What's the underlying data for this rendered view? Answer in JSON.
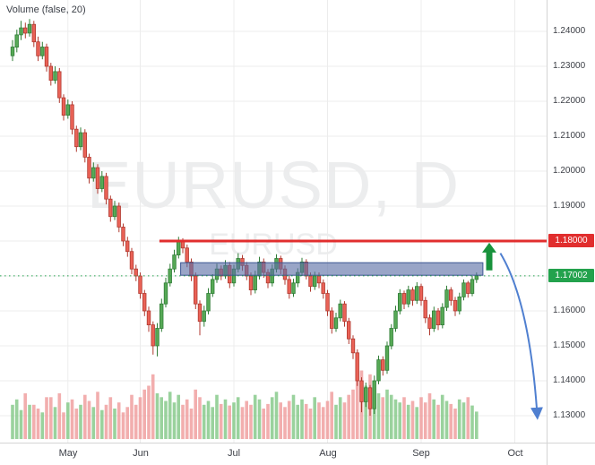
{
  "legend": {
    "volume_label": "Volume (false, 20)"
  },
  "watermark": {
    "line1": "EURUSD, D",
    "line2": "EURUSD"
  },
  "annotations": {
    "resistance": {
      "price": 1.18,
      "label": "1.18000",
      "color": "#e12e2e",
      "from_index": 34.5
    },
    "last_price": {
      "price": 1.17002,
      "label": "1.17002",
      "color": "#23a24d"
    },
    "range_box": {
      "from_index": 39.5,
      "to_index": 110.5,
      "top_price": 1.1738,
      "bottom_price": 1.1702,
      "fill": "rgba(90,110,165,0.62)",
      "border": "#3c5693"
    },
    "up_arrow": {
      "index": 112,
      "tip_price": 1.1795,
      "base_price": 1.1716,
      "color": "#18923c"
    },
    "down_arrow": {
      "from_index": 114.6,
      "from_price": 1.1765,
      "to_index": 123.3,
      "to_price": 1.1295,
      "color": "#4f7fd0"
    }
  },
  "chart_data": {
    "type": "candlestick",
    "symbol": "EURUSD",
    "interval": "D",
    "title": "EURUSD, D",
    "x_axis": {
      "tick_labels": [
        "May",
        "Jun",
        "Jul",
        "Aug",
        "Sep",
        "Oct"
      ],
      "tick_indices": [
        13,
        30,
        52,
        74,
        96,
        118
      ]
    },
    "y_axis": {
      "tick_labels": [
        "1.24000",
        "1.23000",
        "1.22000",
        "1.21000",
        "1.20000",
        "1.19000",
        "1.18000",
        "1.17000",
        "1.16000",
        "1.15000",
        "1.14000",
        "1.13000"
      ],
      "range": [
        1.1223,
        1.249
      ]
    },
    "up_color": "#57a956",
    "up_border": "#2f7d36",
    "down_color": "#ea6257",
    "down_border": "#b03a30",
    "vol_up_color": "rgba(129,199,132,0.8)",
    "vol_down_color": "rgba(239,154,154,0.8)",
    "volume_scale_max": 100,
    "candles": [
      [
        1.233,
        1.2375,
        1.2315,
        1.2355
      ],
      [
        1.2355,
        1.2405,
        1.234,
        1.239
      ],
      [
        1.239,
        1.243,
        1.2375,
        1.241
      ],
      [
        1.241,
        1.2425,
        1.238,
        1.2395
      ],
      [
        1.2395,
        1.2435,
        1.2385,
        1.242
      ],
      [
        1.242,
        1.243,
        1.2355,
        1.237
      ],
      [
        1.237,
        1.2385,
        1.2315,
        1.233
      ],
      [
        1.233,
        1.237,
        1.232,
        1.2355
      ],
      [
        1.2355,
        1.2365,
        1.2285,
        1.23
      ],
      [
        1.23,
        1.231,
        1.2245,
        1.226
      ],
      [
        1.226,
        1.23,
        1.225,
        1.2285
      ],
      [
        1.2285,
        1.2295,
        1.2195,
        1.221
      ],
      [
        1.221,
        1.222,
        1.2145,
        1.216
      ],
      [
        1.216,
        1.2205,
        1.215,
        1.219
      ],
      [
        1.219,
        1.22,
        1.2105,
        1.212
      ],
      [
        1.212,
        1.213,
        1.2055,
        1.207
      ],
      [
        1.207,
        1.2125,
        1.206,
        1.211
      ],
      [
        1.211,
        1.212,
        1.2025,
        1.204
      ],
      [
        1.204,
        1.205,
        1.1965,
        1.198
      ],
      [
        1.198,
        1.2025,
        1.197,
        1.201
      ],
      [
        1.201,
        1.202,
        1.1935,
        1.195
      ],
      [
        1.195,
        1.2,
        1.194,
        1.1985
      ],
      [
        1.1985,
        1.1995,
        1.1905,
        1.192
      ],
      [
        1.192,
        1.193,
        1.1855,
        1.187
      ],
      [
        1.187,
        1.1915,
        1.186,
        1.19
      ],
      [
        1.19,
        1.191,
        1.1825,
        1.184
      ],
      [
        1.184,
        1.185,
        1.1785,
        1.18
      ],
      [
        1.18,
        1.1812,
        1.1755,
        1.177
      ],
      [
        1.177,
        1.178,
        1.1705,
        1.172
      ],
      [
        1.172,
        1.1732,
        1.1685,
        1.17
      ],
      [
        1.17,
        1.171,
        1.1635,
        1.165
      ],
      [
        1.165,
        1.166,
        1.1585,
        1.16
      ],
      [
        1.16,
        1.1612,
        1.154,
        1.156
      ],
      [
        1.156,
        1.157,
        1.1475,
        1.15
      ],
      [
        1.15,
        1.1565,
        1.147,
        1.155
      ],
      [
        1.155,
        1.1635,
        1.154,
        1.162
      ],
      [
        1.162,
        1.1695,
        1.161,
        1.168
      ],
      [
        1.168,
        1.1735,
        1.167,
        1.172
      ],
      [
        1.172,
        1.1775,
        1.171,
        1.176
      ],
      [
        1.176,
        1.1812,
        1.175,
        1.18
      ],
      [
        1.18,
        1.1808,
        1.1765,
        1.178
      ],
      [
        1.178,
        1.179,
        1.1725,
        1.174
      ],
      [
        1.174,
        1.175,
        1.1685,
        1.17
      ],
      [
        1.17,
        1.171,
        1.1605,
        1.162
      ],
      [
        1.162,
        1.163,
        1.153,
        1.157
      ],
      [
        1.157,
        1.1615,
        1.1555,
        1.16
      ],
      [
        1.16,
        1.1665,
        1.159,
        1.165
      ],
      [
        1.165,
        1.1705,
        1.164,
        1.169
      ],
      [
        1.169,
        1.1735,
        1.168,
        1.172
      ],
      [
        1.172,
        1.173,
        1.1688,
        1.17
      ],
      [
        1.17,
        1.1745,
        1.1692,
        1.173
      ],
      [
        1.173,
        1.174,
        1.1665,
        1.168
      ],
      [
        1.168,
        1.1732,
        1.167,
        1.172
      ],
      [
        1.172,
        1.1765,
        1.171,
        1.175
      ],
      [
        1.175,
        1.176,
        1.1715,
        1.173
      ],
      [
        1.173,
        1.174,
        1.1688,
        1.17
      ],
      [
        1.17,
        1.171,
        1.1645,
        1.166
      ],
      [
        1.166,
        1.1715,
        1.165,
        1.17
      ],
      [
        1.17,
        1.1755,
        1.169,
        1.174
      ],
      [
        1.174,
        1.175,
        1.1695,
        1.171
      ],
      [
        1.171,
        1.172,
        1.1665,
        1.168
      ],
      [
        1.168,
        1.1733,
        1.167,
        1.172
      ],
      [
        1.172,
        1.1762,
        1.171,
        1.175
      ],
      [
        1.175,
        1.1758,
        1.1705,
        1.172
      ],
      [
        1.172,
        1.173,
        1.1675,
        1.169
      ],
      [
        1.169,
        1.17,
        1.1635,
        1.165
      ],
      [
        1.165,
        1.1692,
        1.164,
        1.168
      ],
      [
        1.168,
        1.1722,
        1.1668,
        1.171
      ],
      [
        1.171,
        1.1752,
        1.17,
        1.174
      ],
      [
        1.174,
        1.1748,
        1.169,
        1.17
      ],
      [
        1.17,
        1.171,
        1.1655,
        1.167
      ],
      [
        1.167,
        1.1712,
        1.166,
        1.17
      ],
      [
        1.17,
        1.171,
        1.1665,
        1.168
      ],
      [
        1.168,
        1.169,
        1.1635,
        1.165
      ],
      [
        1.165,
        1.166,
        1.1585,
        1.16
      ],
      [
        1.16,
        1.161,
        1.1535,
        1.155
      ],
      [
        1.155,
        1.1595,
        1.154,
        1.158
      ],
      [
        1.158,
        1.1632,
        1.157,
        1.162
      ],
      [
        1.162,
        1.1628,
        1.1555,
        1.157
      ],
      [
        1.157,
        1.158,
        1.1505,
        1.152
      ],
      [
        1.152,
        1.153,
        1.1462,
        1.148
      ],
      [
        1.148,
        1.149,
        1.1385,
        1.14
      ],
      [
        1.14,
        1.141,
        1.131,
        1.134
      ],
      [
        1.134,
        1.1395,
        1.1325,
        1.138
      ],
      [
        1.138,
        1.1388,
        1.13,
        1.132
      ],
      [
        1.132,
        1.1415,
        1.1305,
        1.14
      ],
      [
        1.14,
        1.1472,
        1.139,
        1.146
      ],
      [
        1.146,
        1.147,
        1.1415,
        1.143
      ],
      [
        1.143,
        1.1512,
        1.142,
        1.15
      ],
      [
        1.15,
        1.1562,
        1.149,
        1.155
      ],
      [
        1.155,
        1.1615,
        1.154,
        1.16
      ],
      [
        1.16,
        1.1662,
        1.159,
        1.165
      ],
      [
        1.165,
        1.1658,
        1.1605,
        1.162
      ],
      [
        1.162,
        1.1672,
        1.161,
        1.166
      ],
      [
        1.166,
        1.1668,
        1.1615,
        1.163
      ],
      [
        1.163,
        1.1682,
        1.162,
        1.167
      ],
      [
        1.167,
        1.1678,
        1.1615,
        1.163
      ],
      [
        1.163,
        1.164,
        1.1565,
        1.158
      ],
      [
        1.158,
        1.159,
        1.153,
        1.155
      ],
      [
        1.155,
        1.1612,
        1.154,
        1.16
      ],
      [
        1.16,
        1.1608,
        1.1545,
        1.156
      ],
      [
        1.156,
        1.1622,
        1.155,
        1.161
      ],
      [
        1.161,
        1.1672,
        1.16,
        1.166
      ],
      [
        1.166,
        1.1668,
        1.1615,
        1.163
      ],
      [
        1.163,
        1.164,
        1.1585,
        1.16
      ],
      [
        1.16,
        1.1652,
        1.159,
        1.164
      ],
      [
        1.164,
        1.169,
        1.163,
        1.168
      ],
      [
        1.168,
        1.1686,
        1.1638,
        1.165
      ],
      [
        1.165,
        1.17,
        1.1642,
        1.169
      ],
      [
        1.169,
        1.171,
        1.168,
        1.17002
      ]
    ],
    "volumes": [
      45,
      52,
      38,
      60,
      45,
      45,
      40,
      35,
      55,
      55,
      42,
      60,
      35,
      48,
      52,
      40,
      45,
      58,
      50,
      42,
      62,
      38,
      45,
      55,
      40,
      48,
      35,
      42,
      58,
      45,
      55,
      65,
      70,
      85,
      60,
      55,
      50,
      62,
      48,
      58,
      45,
      52,
      40,
      65,
      55,
      45,
      50,
      42,
      58,
      46,
      52,
      44,
      48,
      55,
      42,
      50,
      45,
      58,
      52,
      40,
      46,
      55,
      62,
      48,
      42,
      50,
      58,
      45,
      52,
      46,
      40,
      55,
      48,
      42,
      50,
      62,
      45,
      55,
      48,
      58,
      65,
      80,
      90,
      70,
      85,
      75,
      60,
      55,
      65,
      58,
      52,
      48,
      55,
      45,
      50,
      42,
      55,
      48,
      60,
      52,
      45,
      58,
      50,
      46,
      40,
      52,
      48,
      55,
      44,
      36
    ]
  }
}
